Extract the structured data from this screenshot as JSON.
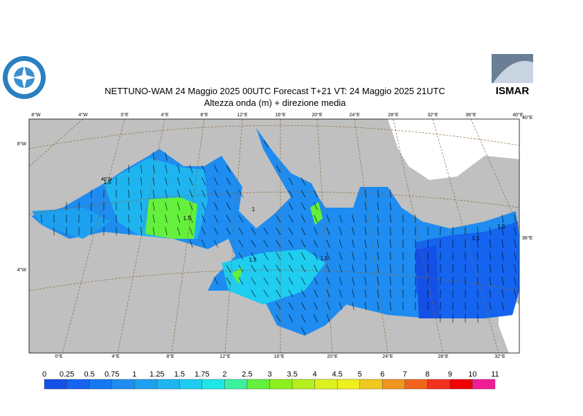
{
  "header": {
    "title": "NETTUNO-WAM  24   Maggio  2025 00UTC Forecast T+21 VT: 24   Maggio  2025 21UTC",
    "subtitle": "Altezza onda (m) + direzione media"
  },
  "logo_right": "ISMAR",
  "map": {
    "top_labels": [
      "8°W",
      "4°W",
      "0°E",
      "4°E",
      "8°E",
      "12°E",
      "16°E",
      "20°E",
      "24°E",
      "28°E",
      "32°E",
      "36°E",
      "40°E"
    ],
    "bottom_labels": [
      "0°E",
      "4°E",
      "8°E",
      "12°E",
      "16°E",
      "20°E",
      "24°E",
      "28°E",
      "32°E"
    ],
    "left_labels": [
      "8°W",
      "4°W"
    ],
    "right_labels": [
      "40°E",
      "36°E"
    ],
    "inner_labels": [
      "40°N"
    ],
    "contour_labels": [
      "1.5",
      "1.5",
      "1",
      "1.5",
      "1.5",
      "1.5",
      "1.5"
    ]
  },
  "colorbar": {
    "levels": [
      0,
      0.25,
      0.5,
      0.75,
      1,
      1.25,
      1.5,
      1.75,
      2,
      2.5,
      3,
      3.5,
      4,
      4.5,
      5,
      6,
      7,
      8,
      9,
      10,
      11
    ],
    "colors": [
      "#1450e6",
      "#1464f0",
      "#1478f0",
      "#1e8cf0",
      "#1ea0f0",
      "#1eb4f0",
      "#1ecdf0",
      "#1ee6e6",
      "#3cf0a0",
      "#64f03c",
      "#8cf01e",
      "#b4f01e",
      "#dcf01e",
      "#f0f01e",
      "#f0c81e",
      "#f0961e",
      "#f0641e",
      "#f0321e",
      "#f00000",
      "#f01e96",
      "#f01ed2"
    ]
  }
}
